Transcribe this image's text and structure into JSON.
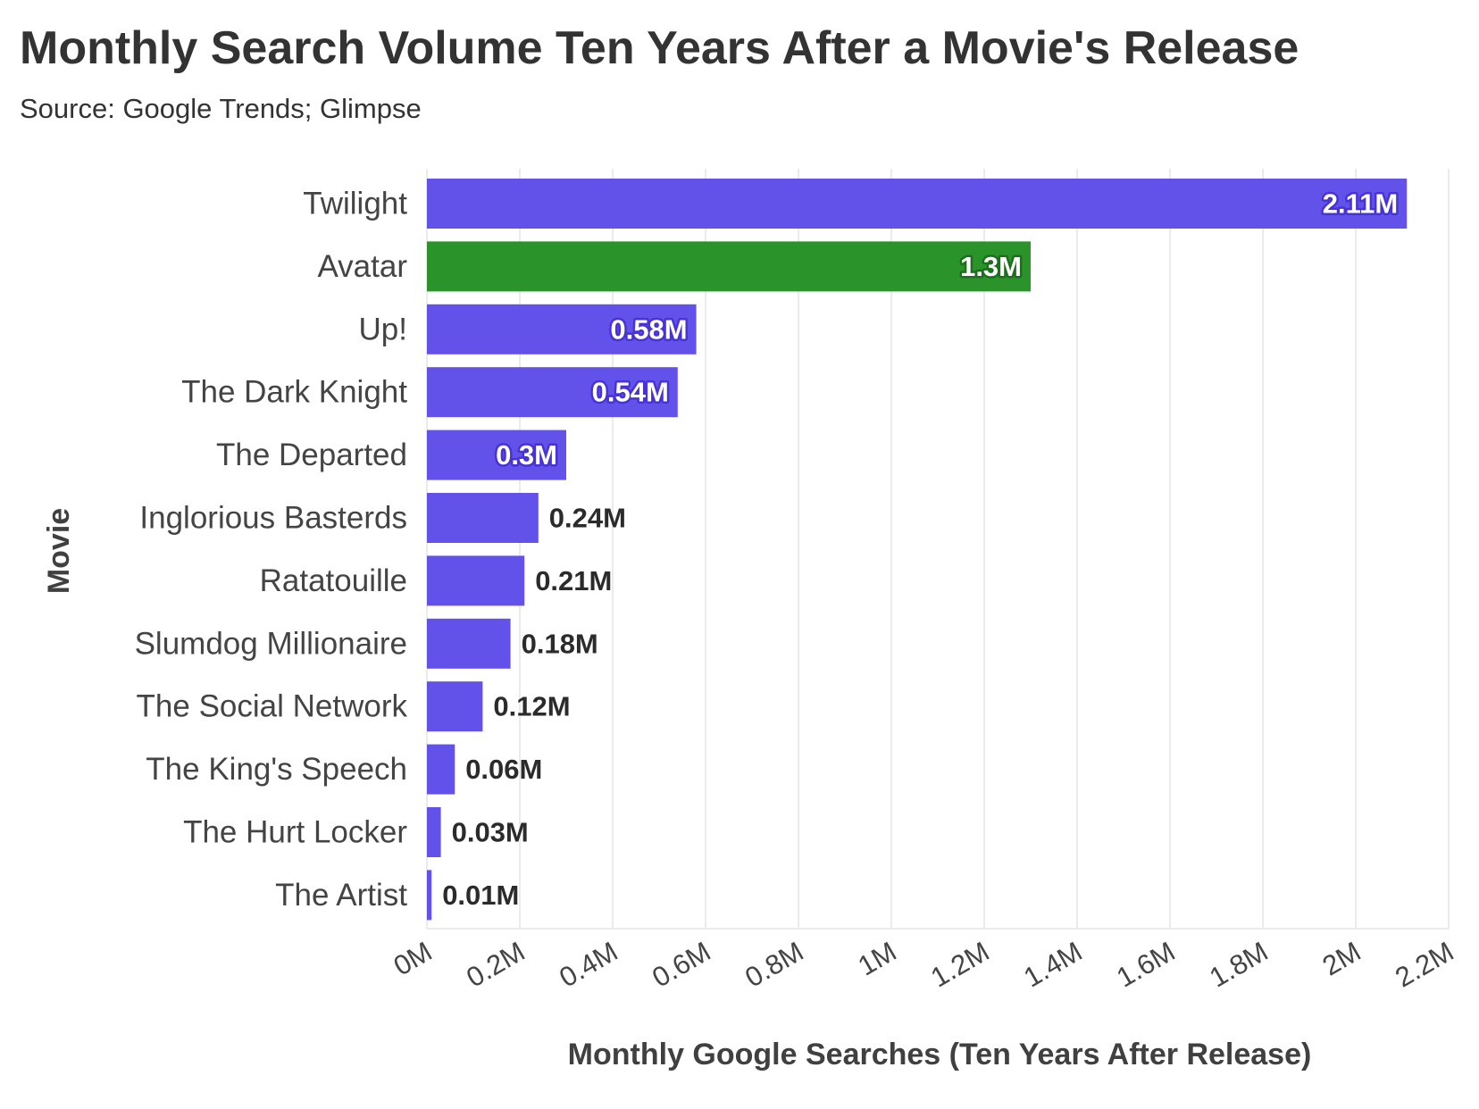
{
  "chart_data": {
    "type": "bar",
    "orientation": "horizontal",
    "title": "Monthly Search Volume Ten Years After a Movie's Release",
    "subtitle": "Source: Google Trends; Glimpse",
    "xlabel": "Monthly Google Searches (Ten Years After Release)",
    "ylabel": "Movie",
    "xlim": [
      0,
      2.2
    ],
    "xticks": [
      0,
      0.2,
      0.4,
      0.6,
      0.8,
      1.0,
      1.2,
      1.4,
      1.6,
      1.8,
      2.0,
      2.2
    ],
    "xtick_labels": [
      "0M",
      "0.2M",
      "0.4M",
      "0.6M",
      "0.8M",
      "1M",
      "1.2M",
      "1.4M",
      "1.6M",
      "1.8M",
      "2M",
      "2.2M"
    ],
    "grid": true,
    "categories": [
      "Twilight",
      "Avatar",
      "Up!",
      "The Dark Knight",
      "The Departed",
      "Inglorious Basterds",
      "Ratatouille",
      "Slumdog Millionaire",
      "The Social Network",
      "The King's Speech",
      "The Hurt Locker",
      "The Artist"
    ],
    "values": [
      2.11,
      1.3,
      0.58,
      0.54,
      0.3,
      0.24,
      0.21,
      0.18,
      0.12,
      0.06,
      0.03,
      0.01
    ],
    "value_labels": [
      "2.11M",
      "1.3M",
      "0.58M",
      "0.54M",
      "0.3M",
      "0.24M",
      "0.21M",
      "0.18M",
      "0.12M",
      "0.06M",
      "0.03M",
      "0.01M"
    ],
    "highlight": "Avatar",
    "colors": {
      "default": "#6352ea",
      "highlight": "#2a932a",
      "default_outline": "#4632d6",
      "highlight_outline": "#1d6e1d",
      "grid": "#ebebeb",
      "text": "#333333"
    }
  }
}
